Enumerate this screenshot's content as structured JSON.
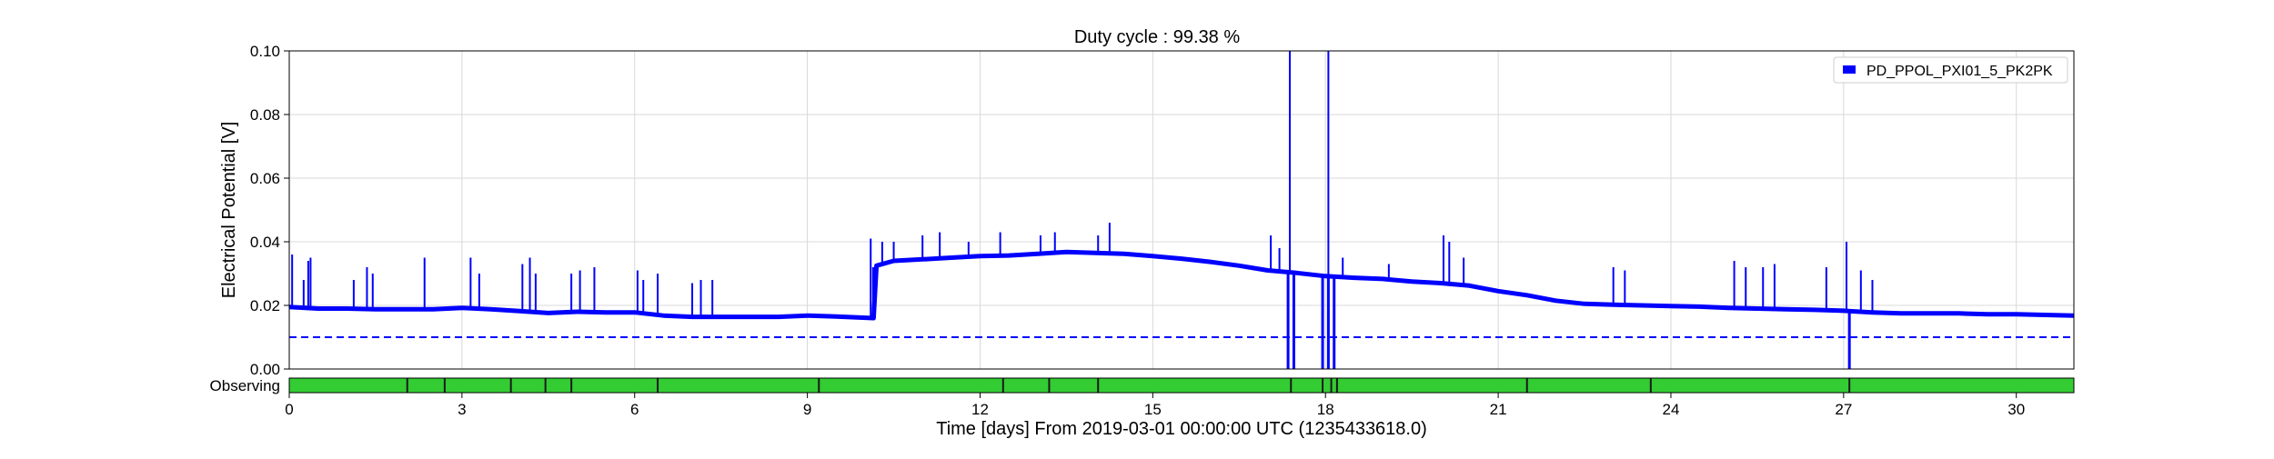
{
  "chart_data": {
    "type": "line",
    "title": "Duty cycle : 99.38 %",
    "xlabel": "Time [days] From 2019-03-01 00:00:00 UTC (1235433618.0)",
    "ylabel": "Electrical Potential [V]",
    "xlim": [
      0,
      31
    ],
    "ylim": [
      0,
      0.1
    ],
    "x_ticks": [
      0,
      3,
      6,
      9,
      12,
      15,
      18,
      21,
      24,
      27,
      30
    ],
    "y_ticks": [
      0.0,
      0.02,
      0.04,
      0.06,
      0.08,
      0.1
    ],
    "y_tick_labels": [
      "0.00",
      "0.02",
      "0.04",
      "0.06",
      "0.08",
      "0.10"
    ],
    "grid": true,
    "legend_position": "top-right",
    "series": [
      {
        "name": "PD_PPOL_PXI01_5_PK2PK",
        "color": "#0000ff",
        "x": [
          0,
          0.5,
          1,
          1.5,
          2,
          2.5,
          3,
          3.5,
          4,
          4.5,
          5,
          5.5,
          6,
          6.5,
          7,
          7.5,
          8,
          8.5,
          9,
          9.5,
          10.15,
          10.2,
          10.5,
          11,
          11.5,
          12,
          12.5,
          13,
          13.5,
          14,
          14.5,
          15,
          15.5,
          16,
          16.5,
          17,
          17.5,
          18,
          18.5,
          19,
          19.5,
          20,
          20.5,
          21,
          21.5,
          22,
          22.5,
          23,
          23.5,
          24,
          24.5,
          25,
          25.5,
          26,
          26.5,
          27,
          27.5,
          28,
          28.5,
          29,
          29.5,
          30,
          30.5,
          31
        ],
        "y": [
          0.0195,
          0.019,
          0.019,
          0.0188,
          0.0188,
          0.0188,
          0.0192,
          0.0188,
          0.0182,
          0.0176,
          0.018,
          0.0178,
          0.0178,
          0.0168,
          0.0164,
          0.0164,
          0.0164,
          0.0164,
          0.0168,
          0.0165,
          0.016,
          0.0325,
          0.034,
          0.0345,
          0.035,
          0.0355,
          0.0357,
          0.0362,
          0.0368,
          0.0365,
          0.0362,
          0.0355,
          0.0347,
          0.0337,
          0.0325,
          0.031,
          0.0302,
          0.0292,
          0.0287,
          0.0283,
          0.0275,
          0.027,
          0.0262,
          0.0245,
          0.0232,
          0.0215,
          0.0205,
          0.0202,
          0.02,
          0.0198,
          0.0196,
          0.0192,
          0.019,
          0.0188,
          0.0186,
          0.0183,
          0.0178,
          0.0175,
          0.0175,
          0.0175,
          0.0172,
          0.0172,
          0.017,
          0.0168
        ]
      }
    ],
    "spikes": [
      {
        "x": 0.05,
        "y": 0.036
      },
      {
        "x": 0.25,
        "y": 0.028
      },
      {
        "x": 0.33,
        "y": 0.034
      },
      {
        "x": 0.37,
        "y": 0.035
      },
      {
        "x": 1.12,
        "y": 0.028
      },
      {
        "x": 1.35,
        "y": 0.032
      },
      {
        "x": 1.45,
        "y": 0.03
      },
      {
        "x": 2.35,
        "y": 0.035
      },
      {
        "x": 3.15,
        "y": 0.035
      },
      {
        "x": 3.3,
        "y": 0.03
      },
      {
        "x": 4.05,
        "y": 0.033
      },
      {
        "x": 4.18,
        "y": 0.035
      },
      {
        "x": 4.28,
        "y": 0.03
      },
      {
        "x": 4.9,
        "y": 0.03
      },
      {
        "x": 5.05,
        "y": 0.031
      },
      {
        "x": 5.3,
        "y": 0.032
      },
      {
        "x": 6.05,
        "y": 0.031
      },
      {
        "x": 6.15,
        "y": 0.028
      },
      {
        "x": 6.4,
        "y": 0.03
      },
      {
        "x": 7.0,
        "y": 0.027
      },
      {
        "x": 7.15,
        "y": 0.028
      },
      {
        "x": 7.35,
        "y": 0.028
      },
      {
        "x": 10.1,
        "y": 0.041
      },
      {
        "x": 10.3,
        "y": 0.04
      },
      {
        "x": 10.5,
        "y": 0.04
      },
      {
        "x": 11.0,
        "y": 0.042
      },
      {
        "x": 11.3,
        "y": 0.043
      },
      {
        "x": 11.8,
        "y": 0.04
      },
      {
        "x": 12.35,
        "y": 0.043
      },
      {
        "x": 13.05,
        "y": 0.042
      },
      {
        "x": 13.3,
        "y": 0.043
      },
      {
        "x": 14.05,
        "y": 0.042
      },
      {
        "x": 14.25,
        "y": 0.046
      },
      {
        "x": 17.05,
        "y": 0.042
      },
      {
        "x": 17.2,
        "y": 0.038
      },
      {
        "x": 17.38,
        "y": 0.1
      },
      {
        "x": 18.05,
        "y": 0.1
      },
      {
        "x": 18.3,
        "y": 0.035
      },
      {
        "x": 19.1,
        "y": 0.033
      },
      {
        "x": 20.05,
        "y": 0.042
      },
      {
        "x": 20.15,
        "y": 0.04
      },
      {
        "x": 20.4,
        "y": 0.035
      },
      {
        "x": 23.0,
        "y": 0.032
      },
      {
        "x": 23.2,
        "y": 0.031
      },
      {
        "x": 25.1,
        "y": 0.034
      },
      {
        "x": 25.3,
        "y": 0.032
      },
      {
        "x": 25.6,
        "y": 0.032
      },
      {
        "x": 25.8,
        "y": 0.033
      },
      {
        "x": 26.7,
        "y": 0.032
      },
      {
        "x": 27.05,
        "y": 0.04
      },
      {
        "x": 27.3,
        "y": 0.031
      },
      {
        "x": 27.5,
        "y": 0.028
      }
    ],
    "dips": [
      {
        "x": 17.35,
        "y": 0.0
      },
      {
        "x": 17.45,
        "y": 0.0
      },
      {
        "x": 17.95,
        "y": 0.0
      },
      {
        "x": 18.05,
        "y": 0.0
      },
      {
        "x": 18.15,
        "y": 0.0
      },
      {
        "x": 27.1,
        "y": 0.0
      }
    ],
    "threshold": {
      "y": 0.01,
      "style": "dashed",
      "color": "#0000ff"
    },
    "segment_bar": {
      "label": "Observing",
      "active_color": "#33cc33",
      "inactive_color": "#1a1a1a",
      "inactive_x": [
        2.05,
        2.7,
        3.85,
        4.45,
        4.9,
        6.4,
        9.2,
        12.4,
        13.2,
        14.05,
        17.4,
        17.95,
        18.1,
        18.2,
        21.5,
        23.65,
        27.1
      ]
    }
  }
}
